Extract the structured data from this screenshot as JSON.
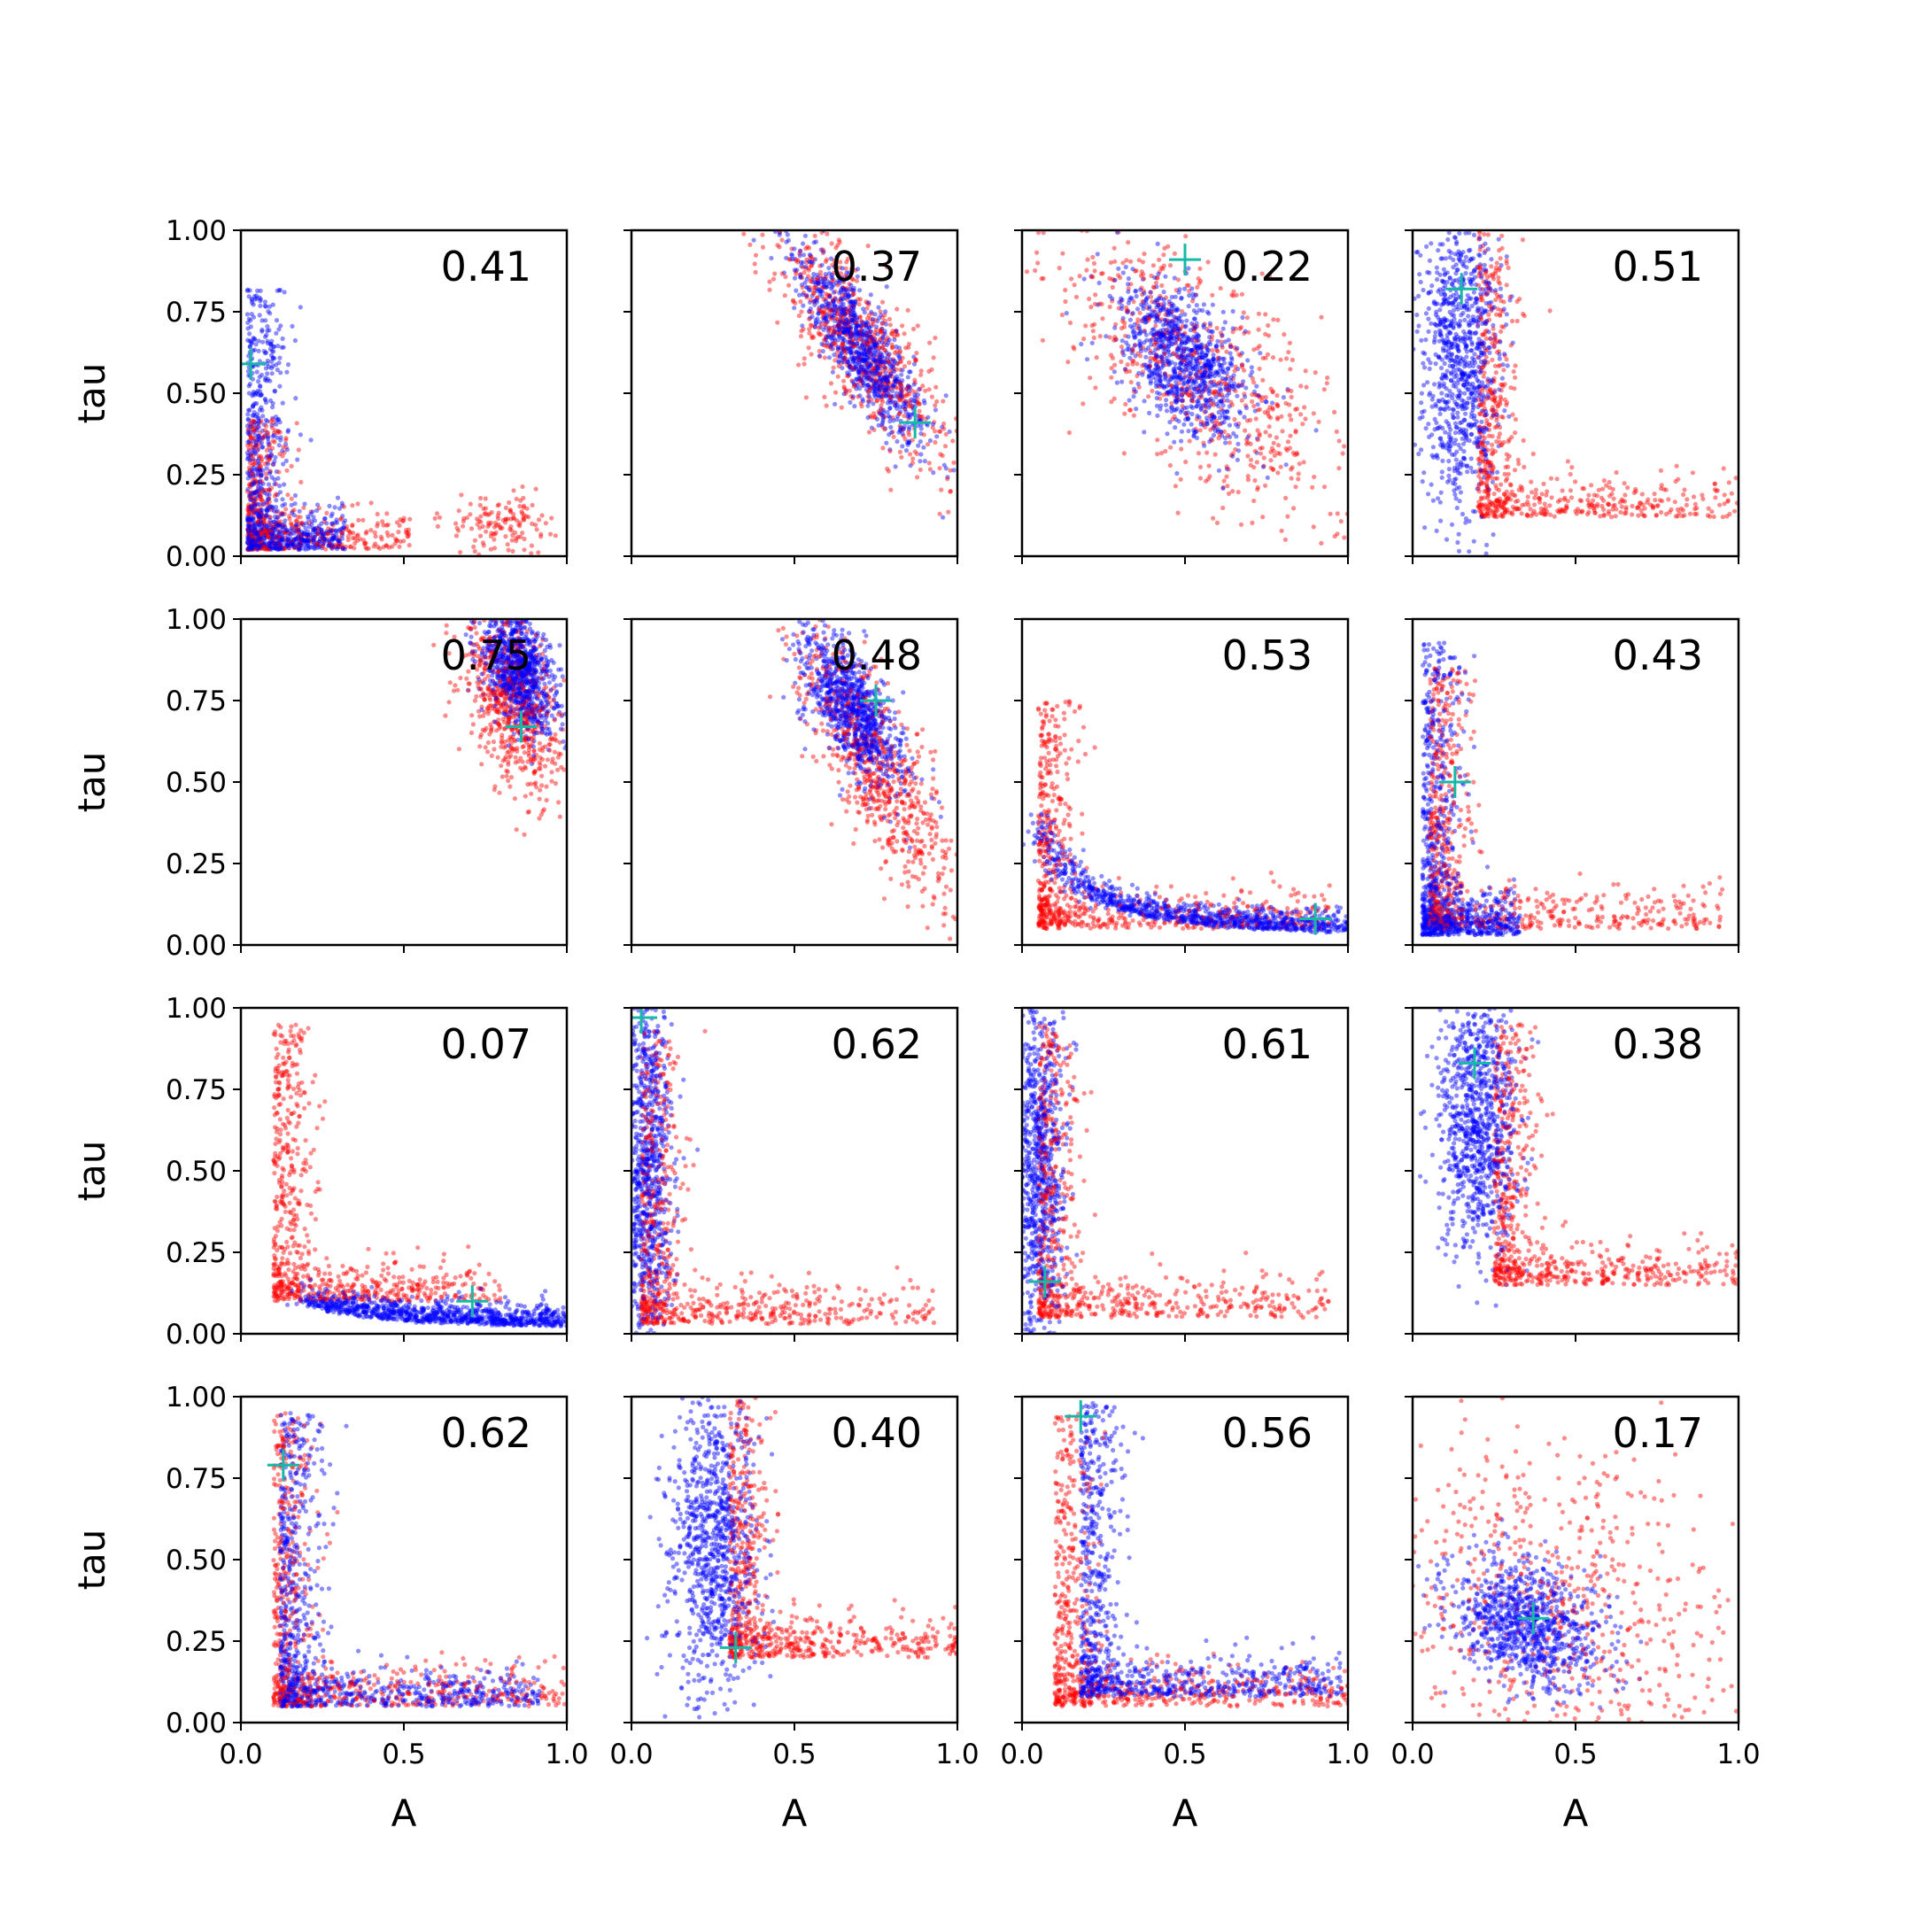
{
  "figure": {
    "x_label": "A",
    "y_label": "tau"
  },
  "colors": {
    "series_a": "#ff0000",
    "series_b": "#0000ff",
    "marker": "#17b8a8",
    "frame": "#000000"
  },
  "chart_data": {
    "type": "scatter",
    "layout": "4x4 grid of scatter panels, shared axes",
    "xlabel": "A",
    "ylabel": "tau",
    "xlim": [
      0,
      1
    ],
    "ylim": [
      0,
      1
    ],
    "x_ticks": [
      0.0,
      0.5,
      1.0
    ],
    "x_tick_labels": [
      "0.0",
      "0.5",
      "1.0"
    ],
    "y_ticks": [
      0.0,
      0.25,
      0.5,
      0.75,
      1.0
    ],
    "y_tick_labels": [
      "0.00",
      "0.25",
      "0.50",
      "0.75",
      "1.00"
    ],
    "series": [
      {
        "name": "red",
        "color": "#ff0000"
      },
      {
        "name": "blue",
        "color": "#0000ff"
      }
    ],
    "marker": {
      "shape": "+",
      "color": "#17b8a8"
    },
    "panels": [
      {
        "label": "0.41",
        "marker": {
          "x": 0.03,
          "y": 0.59
        },
        "red": {
          "pattern": "L",
          "corner": [
            0.02,
            0.02
          ],
          "spread": [
            0.5,
            0.4
          ],
          "cluster": [
            0.8,
            0.1
          ]
        },
        "blue": {
          "pattern": "L",
          "corner": [
            0.02,
            0.02
          ],
          "spread": [
            0.3,
            0.8
          ]
        }
      },
      {
        "label": "0.37",
        "marker": {
          "x": 0.87,
          "y": 0.41
        },
        "red": {
          "pattern": "blob",
          "center": [
            0.7,
            0.65
          ],
          "sd": [
            0.13,
            0.18
          ],
          "tilt": -0.8
        },
        "blue": {
          "pattern": "blob",
          "center": [
            0.7,
            0.65
          ],
          "sd": [
            0.1,
            0.15
          ],
          "tilt": -0.85
        }
      },
      {
        "label": "0.22",
        "marker": {
          "x": 0.5,
          "y": 0.91
        },
        "red": {
          "pattern": "blob",
          "center": [
            0.55,
            0.55
          ],
          "sd": [
            0.25,
            0.25
          ],
          "tilt": -0.7
        },
        "blue": {
          "pattern": "blob",
          "center": [
            0.5,
            0.6
          ],
          "sd": [
            0.1,
            0.12
          ],
          "tilt": -0.5
        }
      },
      {
        "label": "0.51",
        "marker": {
          "x": 0.15,
          "y": 0.82
        },
        "red": {
          "pattern": "L",
          "corner": [
            0.2,
            0.12
          ],
          "spread": [
            0.9,
            0.9
          ]
        },
        "blue": {
          "pattern": "vband",
          "center": [
            0.15,
            0.6
          ],
          "sd": [
            0.06,
            0.25
          ]
        }
      },
      {
        "label": "0.75",
        "marker": {
          "x": 0.86,
          "y": 0.67
        },
        "red": {
          "pattern": "blob",
          "center": [
            0.83,
            0.75
          ],
          "sd": [
            0.08,
            0.15
          ],
          "tilt": -0.5
        },
        "blue": {
          "pattern": "blob",
          "center": [
            0.85,
            0.85
          ],
          "sd": [
            0.06,
            0.1
          ],
          "tilt": -0.5
        }
      },
      {
        "label": "0.48",
        "marker": {
          "x": 0.75,
          "y": 0.75
        },
        "red": {
          "pattern": "blob",
          "center": [
            0.75,
            0.55
          ],
          "sd": [
            0.12,
            0.2
          ],
          "tilt": -0.8
        },
        "blue": {
          "pattern": "blob",
          "center": [
            0.68,
            0.72
          ],
          "sd": [
            0.08,
            0.12
          ],
          "tilt": -0.7
        }
      },
      {
        "label": "0.53",
        "marker": {
          "x": 0.9,
          "y": 0.08
        },
        "red": {
          "pattern": "L",
          "corner": [
            0.05,
            0.05
          ],
          "spread": [
            0.9,
            0.7
          ]
        },
        "blue": {
          "pattern": "curve",
          "range": [
            0.05,
            1.0
          ],
          "k": 0.15
        }
      },
      {
        "label": "0.43",
        "marker": {
          "x": 0.13,
          "y": 0.5
        },
        "red": {
          "pattern": "L",
          "corner": [
            0.05,
            0.05
          ],
          "spread": [
            0.9,
            0.8
          ]
        },
        "blue": {
          "pattern": "L",
          "corner": [
            0.03,
            0.03
          ],
          "spread": [
            0.3,
            0.9
          ]
        }
      },
      {
        "label": "0.07",
        "marker": {
          "x": 0.71,
          "y": 0.1
        },
        "red": {
          "pattern": "L",
          "corner": [
            0.1,
            0.1
          ],
          "spread": [
            0.7,
            0.85
          ]
        },
        "blue": {
          "pattern": "curve",
          "range": [
            0.2,
            1.0
          ],
          "k": 0.09
        }
      },
      {
        "label": "0.62",
        "marker": {
          "x": 0.03,
          "y": 0.97
        },
        "red": {
          "pattern": "L",
          "corner": [
            0.03,
            0.03
          ],
          "spread": [
            0.9,
            0.9
          ]
        },
        "blue": {
          "pattern": "vband",
          "center": [
            0.05,
            0.5
          ],
          "sd": [
            0.04,
            0.3
          ]
        }
      },
      {
        "label": "0.61",
        "marker": {
          "x": 0.07,
          "y": 0.16
        },
        "red": {
          "pattern": "L",
          "corner": [
            0.05,
            0.05
          ],
          "spread": [
            0.9,
            0.9
          ]
        },
        "blue": {
          "pattern": "vband",
          "center": [
            0.05,
            0.5
          ],
          "sd": [
            0.04,
            0.3
          ]
        }
      },
      {
        "label": "0.38",
        "marker": {
          "x": 0.19,
          "y": 0.83
        },
        "red": {
          "pattern": "L",
          "corner": [
            0.25,
            0.15
          ],
          "spread": [
            0.8,
            0.8
          ]
        },
        "blue": {
          "pattern": "vband",
          "center": [
            0.2,
            0.65
          ],
          "sd": [
            0.06,
            0.2
          ]
        }
      },
      {
        "label": "0.62",
        "marker": {
          "x": 0.13,
          "y": 0.79
        },
        "red": {
          "pattern": "L",
          "corner": [
            0.1,
            0.05
          ],
          "spread": [
            0.9,
            0.9
          ]
        },
        "blue": {
          "pattern": "L",
          "corner": [
            0.12,
            0.05
          ],
          "spread": [
            0.8,
            0.9
          ]
        }
      },
      {
        "label": "0.40",
        "marker": {
          "x": 0.32,
          "y": 0.23
        },
        "red": {
          "pattern": "L",
          "corner": [
            0.3,
            0.2
          ],
          "spread": [
            0.7,
            0.8
          ]
        },
        "blue": {
          "pattern": "vband",
          "center": [
            0.25,
            0.55
          ],
          "sd": [
            0.07,
            0.25
          ]
        }
      },
      {
        "label": "0.56",
        "marker": {
          "x": 0.18,
          "y": 0.94
        },
        "red": {
          "pattern": "L",
          "corner": [
            0.1,
            0.05
          ],
          "spread": [
            0.9,
            0.9
          ]
        },
        "blue": {
          "pattern": "L",
          "corner": [
            0.18,
            0.08
          ],
          "spread": [
            0.8,
            0.9
          ]
        }
      },
      {
        "label": "0.17",
        "marker": {
          "x": 0.37,
          "y": 0.32
        },
        "red": {
          "pattern": "blob",
          "center": [
            0.45,
            0.35
          ],
          "sd": [
            0.3,
            0.3
          ],
          "tilt": -0.4
        },
        "blue": {
          "pattern": "blob",
          "center": [
            0.35,
            0.3
          ],
          "sd": [
            0.12,
            0.1
          ],
          "tilt": -0.3
        }
      }
    ]
  }
}
